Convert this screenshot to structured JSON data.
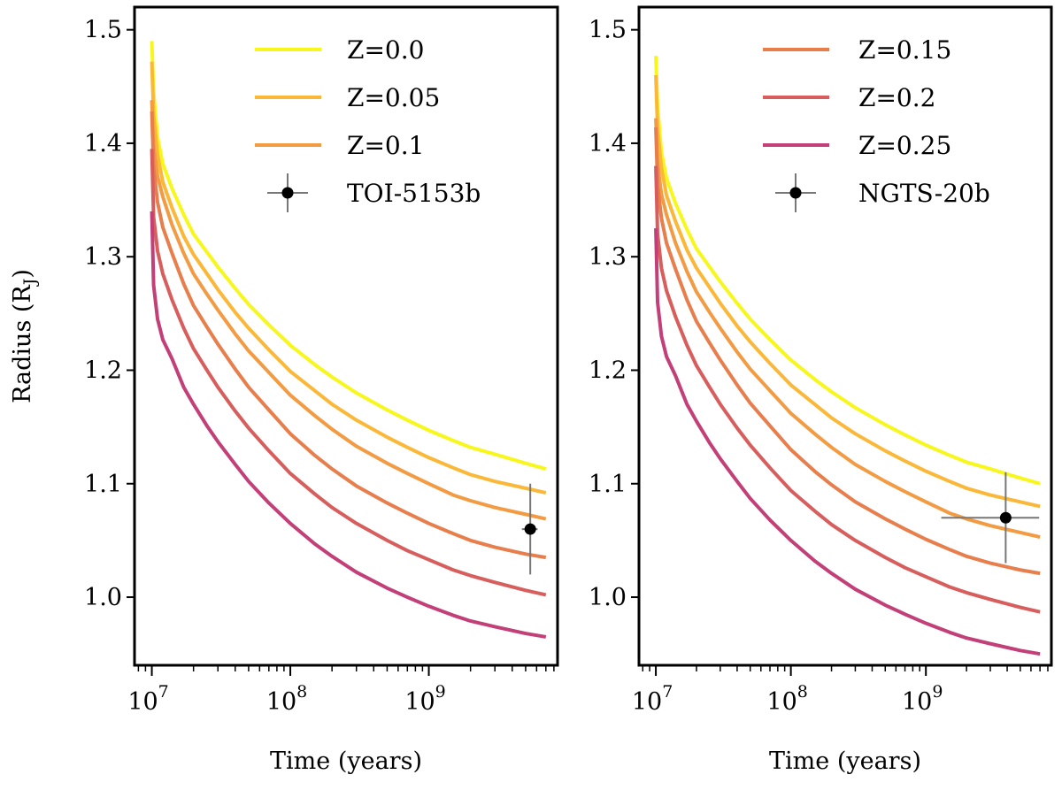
{
  "chart_data": [
    {
      "type": "line",
      "xscale": "log",
      "xlabel": "Time (years)",
      "ylabel_main": "Radius (R",
      "ylabel_sub": "J",
      "ylabel_close": ")",
      "xlim": [
        7500000,
        8500000000
      ],
      "ylim": [
        0.94,
        1.52
      ],
      "x_major_ticks": [
        10000000,
        100000000,
        1000000000
      ],
      "x_tick_base": "10",
      "x_tick_exponents": [
        "7",
        "8",
        "9"
      ],
      "yticks": [
        1.0,
        1.1,
        1.2,
        1.3,
        1.4,
        1.5
      ],
      "ytick_labels": [
        "1.0",
        "1.1",
        "1.2",
        "1.3",
        "1.4",
        "1.5"
      ],
      "x": [
        10000000,
        10300000,
        11000000,
        12000000,
        14000000,
        17000000,
        20000000,
        25000000,
        30000000,
        40000000,
        50000000,
        70000000,
        100000000,
        150000000,
        200000000,
        300000000,
        500000000,
        700000000,
        1000000000,
        1500000000,
        2000000000,
        3000000000,
        5000000000,
        7000000000
      ],
      "series": [
        {
          "name": "Z=0.0",
          "color": "#f7f71c",
          "values": [
            1.49,
            1.445,
            1.405,
            1.382,
            1.36,
            1.337,
            1.32,
            1.304,
            1.291,
            1.272,
            1.258,
            1.24,
            1.222,
            1.205,
            1.194,
            1.18,
            1.165,
            1.156,
            1.147,
            1.138,
            1.132,
            1.126,
            1.118,
            1.113
          ]
        },
        {
          "name": "Z=0.05",
          "color": "#fbb838",
          "values": [
            1.472,
            1.425,
            1.39,
            1.366,
            1.343,
            1.318,
            1.302,
            1.285,
            1.271,
            1.251,
            1.237,
            1.218,
            1.199,
            1.182,
            1.17,
            1.156,
            1.141,
            1.132,
            1.123,
            1.114,
            1.108,
            1.102,
            1.096,
            1.092
          ]
        },
        {
          "name": "Z=0.1",
          "color": "#f39b43",
          "values": [
            1.43,
            1.39,
            1.363,
            1.345,
            1.32,
            1.295,
            1.277,
            1.259,
            1.245,
            1.224,
            1.209,
            1.19,
            1.17,
            1.152,
            1.14,
            1.125,
            1.11,
            1.101,
            1.092,
            1.082,
            1.077,
            1.071,
            1.065,
            1.061
          ]
        },
        {
          "name": "Z=0.15",
          "color": "#e77e4c",
          "values": [
            1.42,
            1.37,
            1.34,
            1.318,
            1.295,
            1.268,
            1.249,
            1.23,
            1.215,
            1.193,
            1.177,
            1.157,
            1.136,
            1.117,
            1.105,
            1.09,
            1.075,
            1.066,
            1.057,
            1.048,
            1.042,
            1.036,
            1.03,
            1.027
          ]
        },
        {
          "name": "Z=0.2",
          "color": "#d75e5c",
          "values": [
            1.38,
            1.32,
            1.29,
            1.27,
            1.247,
            1.222,
            1.204,
            1.185,
            1.17,
            1.149,
            1.134,
            1.114,
            1.094,
            1.076,
            1.064,
            1.05,
            1.035,
            1.026,
            1.018,
            1.009,
            1.004,
            0.998,
            0.991,
            0.987
          ]
        },
        {
          "name": "Z=0.25",
          "color": "#c33f78",
          "values": [
            1.325,
            1.26,
            1.23,
            1.212,
            1.195,
            1.17,
            1.155,
            1.136,
            1.122,
            1.102,
            1.087,
            1.068,
            1.05,
            1.032,
            1.021,
            1.007,
            0.993,
            0.985,
            0.977,
            0.969,
            0.964,
            0.959,
            0.953,
            0.95
          ]
        }
      ],
      "panels": [
        {
          "name": "left",
          "legend": {
            "placement": "top-right",
            "entries": [
              "Z=0.0",
              "Z=0.05",
              "Z=0.1",
              "TOI-5153b"
            ]
          },
          "curves": [
            {
              "series": 0,
              "y_offset": 0
            },
            {
              "series": 1,
              "y_offset": 0
            },
            {
              "series": 2,
              "y_offset": 0.008
            },
            {
              "series": 3,
              "y_offset": 0.008
            },
            {
              "series": 4,
              "y_offset": 0.015
            },
            {
              "series": 5,
              "y_offset": 0.015
            }
          ],
          "planet": {
            "name": "TOI-5153b",
            "age_years": 5400000000,
            "age_err_low_years": 700000000,
            "age_err_high_years": 700000000,
            "radius_rj": 1.06,
            "radius_err_rj": 0.04
          }
        },
        {
          "name": "right",
          "legend": {
            "placement": "top-right",
            "entries": [
              "Z=0.15",
              "Z=0.2",
              "Z=0.25",
              "NGTS-20b"
            ]
          },
          "curves": [
            {
              "series": 0,
              "y_offset": -0.013
            },
            {
              "series": 1,
              "y_offset": -0.012
            },
            {
              "series": 2,
              "y_offset": -0.008
            },
            {
              "series": 3,
              "y_offset": -0.006
            },
            {
              "series": 4,
              "y_offset": 0
            },
            {
              "series": 5,
              "y_offset": 0
            }
          ],
          "planet": {
            "name": "NGTS-20b",
            "age_years": 3900000000,
            "age_err_low_years": 2600000000,
            "age_err_high_years": 3000000000,
            "radius_rj": 1.07,
            "radius_err_rj": 0.04
          }
        }
      ]
    }
  ]
}
